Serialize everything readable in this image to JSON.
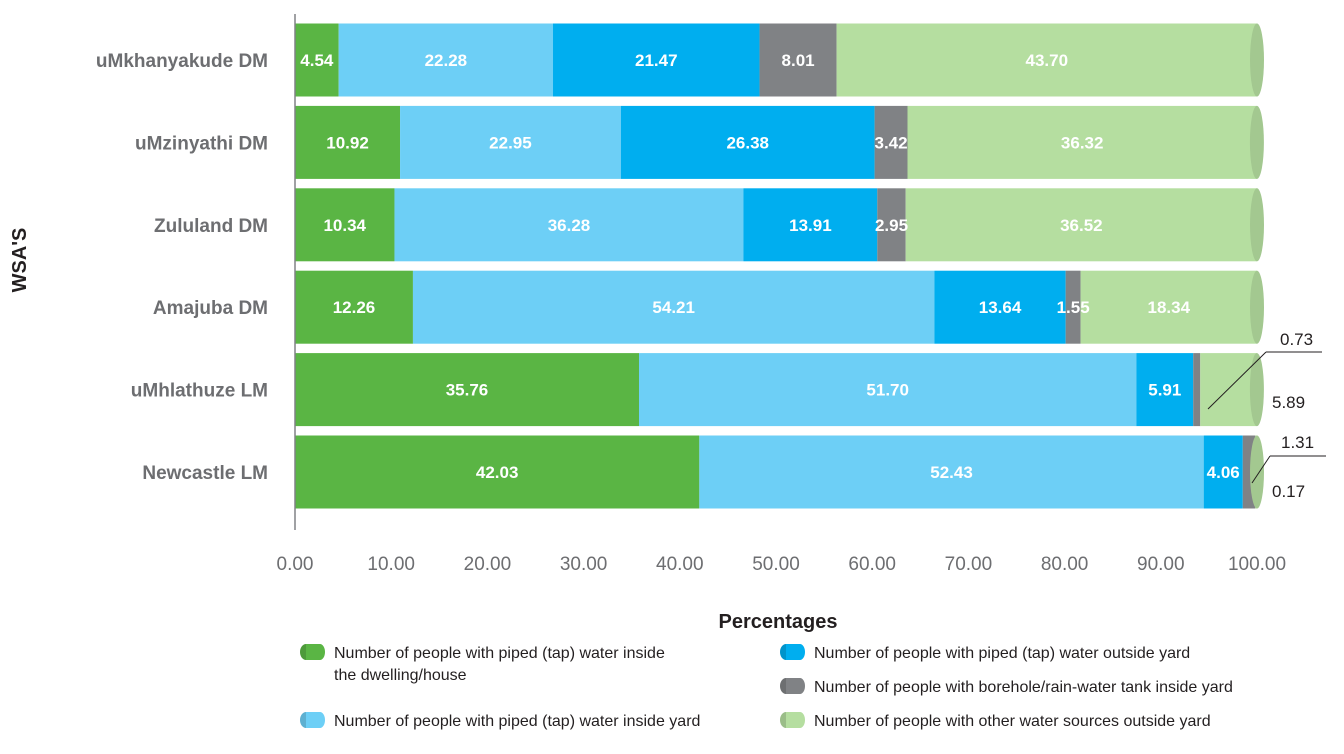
{
  "chart_data": {
    "type": "bar",
    "orientation": "horizontal",
    "stacked": true,
    "categories": [
      "uMkhanyakude DM",
      "uMzinyathi DM",
      "Zululand DM",
      "Amajuba DM",
      "uMhlathuze LM",
      "Newcastle LM"
    ],
    "series": [
      {
        "name": "Number of people with piped (tap) water inside the dwelling/house",
        "color": "#5ab544",
        "values": [
          4.54,
          10.92,
          10.34,
          12.26,
          35.76,
          42.03
        ],
        "labels": [
          "4.54",
          "10.92",
          "10.34",
          "12.26",
          "35.76",
          "42.03"
        ]
      },
      {
        "name": "Number of people with piped (tap) water inside yard",
        "color": "#6dcff6",
        "values": [
          22.28,
          22.95,
          36.28,
          54.21,
          51.7,
          52.43
        ],
        "labels": [
          "22.28",
          "22.95",
          "36.28",
          "54.21",
          "51.70",
          "52.43"
        ]
      },
      {
        "name": "Number of people with piped (tap) water outside yard",
        "color": "#00aeef",
        "values": [
          21.47,
          26.38,
          13.91,
          13.64,
          5.91,
          4.06
        ],
        "labels": [
          "21.47",
          "26.38",
          "13.91",
          "13.64",
          "5.91",
          "4.06"
        ]
      },
      {
        "name": "Number of people with borehole/rain-water tank inside yard",
        "color": "#808285",
        "values": [
          8.01,
          3.42,
          2.95,
          1.55,
          0.73,
          1.31
        ],
        "labels": [
          "8.01",
          "3.42",
          "2.95",
          "1.55",
          "0.73",
          "1.31"
        ]
      },
      {
        "name": "Number of people with other water sources outside yard",
        "color": "#b5dea0",
        "values": [
          43.7,
          36.32,
          36.52,
          18.34,
          5.89,
          0.17
        ],
        "labels": [
          "43.70",
          "36.32",
          "36.52",
          "18.34",
          "5.89",
          "0.17"
        ]
      }
    ],
    "xlabel": "Percentages",
    "ylabel": "WSA'S",
    "xlim": [
      0,
      100
    ],
    "xticks": [
      "0.00",
      "10.00",
      "20.00",
      "30.00",
      "40.00",
      "50.00",
      "60.00",
      "70.00",
      "80.00",
      "90.00",
      "100.00"
    ],
    "legend_position": "bottom",
    "external_labels": [
      {
        "category": "uMhlathuze LM",
        "series": 3,
        "text": "0.73"
      },
      {
        "category": "uMhlathuze LM",
        "series": 4,
        "text": "5.89"
      },
      {
        "category": "Newcastle LM",
        "series": 3,
        "text": "1.31"
      },
      {
        "category": "Newcastle LM",
        "series": 4,
        "text": "0.17"
      }
    ],
    "legend": [
      {
        "lines": [
          "Number of people with piped (tap) water inside",
          "the dwelling/house"
        ],
        "color": "#5ab544"
      },
      {
        "lines": [
          "Number of people with piped (tap) water inside yard"
        ],
        "color": "#6dcff6"
      },
      {
        "lines": [
          "Number of people with piped (tap) water outside yard"
        ],
        "color": "#00aeef"
      },
      {
        "lines": [
          "Number of people with borehole/rain-water tank inside yard"
        ],
        "color": "#808285"
      },
      {
        "lines": [
          "Number of people with other water sources outside yard"
        ],
        "color": "#b5dea0"
      }
    ]
  }
}
